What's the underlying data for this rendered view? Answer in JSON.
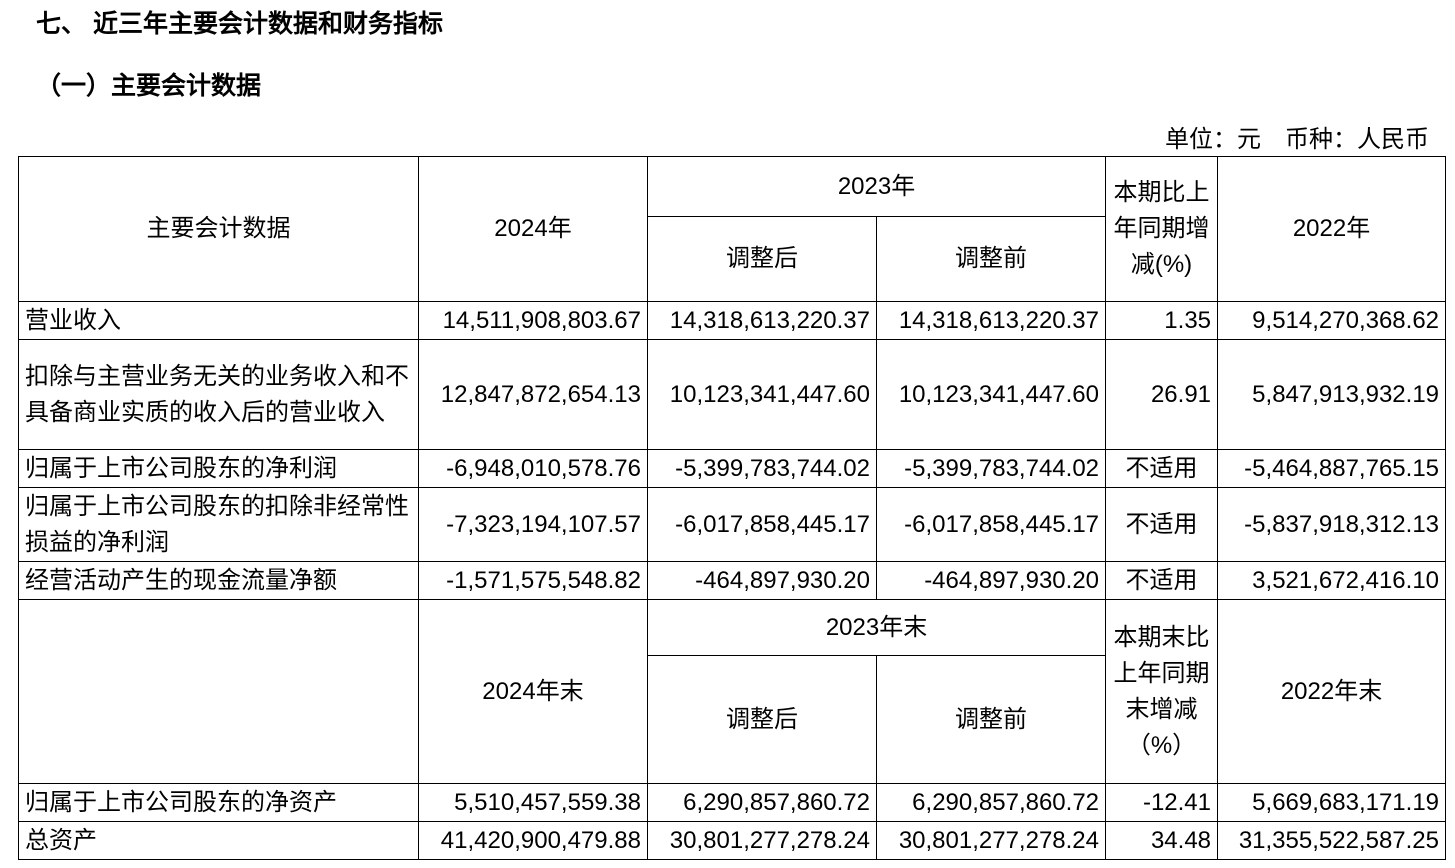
{
  "heading": "七、 近三年主要会计数据和财务指标",
  "subheading": "（一）主要会计数据",
  "unit_note": "单位：元　币种：人民币",
  "table1": {
    "header": {
      "label": "主要会计数据",
      "current": "2024年",
      "group": "2023年",
      "adjusted": "调整后",
      "before": "调整前",
      "change": "本期比上年同期增减(%)",
      "prior": "2022年"
    },
    "rows": [
      [
        "营业收入",
        "14,511,908,803.67",
        "14,318,613,220.37",
        "14,318,613,220.37",
        "1.35",
        "9,514,270,368.62"
      ],
      [
        "扣除与主营业务无关的业务收入和不具备商业实质的收入后的营业收入",
        "12,847,872,654.13",
        "10,123,341,447.60",
        "10,123,341,447.60",
        "26.91",
        "5,847,913,932.19"
      ],
      [
        "归属于上市公司股东的净利润",
        "-6,948,010,578.76",
        "-5,399,783,744.02",
        "-5,399,783,744.02",
        "不适用",
        "-5,464,887,765.15"
      ],
      [
        "归属于上市公司股东的扣除非经常性损益的净利润",
        "-7,323,194,107.57",
        "-6,017,858,445.17",
        "-6,017,858,445.17",
        "不适用",
        "-5,837,918,312.13"
      ],
      [
        "经营活动产生的现金流量净额",
        "-1,571,575,548.82",
        "-464,897,930.20",
        "-464,897,930.20",
        "不适用",
        "3,521,672,416.10"
      ]
    ]
  },
  "table2": {
    "header": {
      "current": "2024年末",
      "group": "2023年末",
      "adjusted": "调整后",
      "before": "调整前",
      "change": "本期末比上年同期末增减（%）",
      "prior": "2022年末"
    },
    "rows": [
      [
        "归属于上市公司股东的净资产",
        "5,510,457,559.38",
        "6,290,857,860.72",
        "6,290,857,860.72",
        "-12.41",
        "5,669,683,171.19"
      ],
      [
        "总资产",
        "41,420,900,479.88",
        "30,801,277,278.24",
        "30,801,277,278.24",
        "34.48",
        "31,355,522,587.25"
      ]
    ]
  }
}
